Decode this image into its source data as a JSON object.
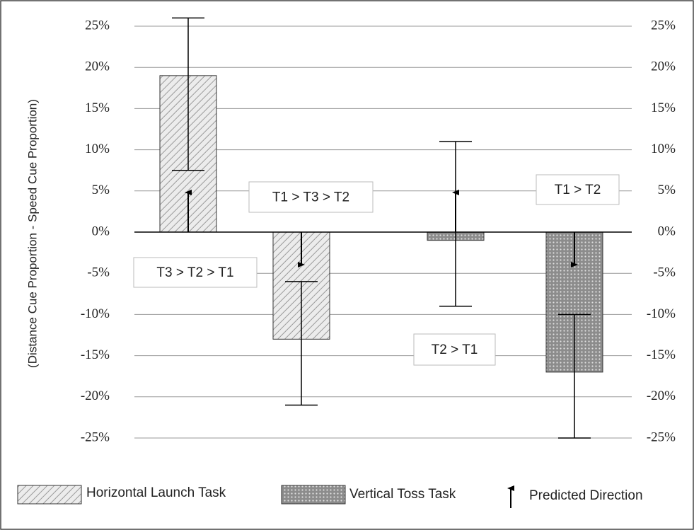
{
  "chart_data": {
    "type": "bar",
    "y_label": "(Distance Cue Proportion - Speed Cue Proportion)",
    "categories": [
      null,
      null,
      null,
      null
    ],
    "series": [
      {
        "name": "Horizontal Launch Task",
        "color": "#e8e8e8",
        "pattern": "hatch",
        "values": [
          19,
          -13,
          null,
          null
        ],
        "error_low": [
          7.5,
          -21,
          null,
          null
        ],
        "error_high": [
          26,
          -6,
          null,
          null
        ]
      },
      {
        "name": "Vertical Toss Task",
        "color": "#8c8c8c",
        "pattern": "dots",
        "values": [
          null,
          null,
          -1,
          -17
        ],
        "error_low": [
          null,
          null,
          -9,
          -25
        ],
        "error_high": [
          null,
          null,
          11,
          -10
        ]
      }
    ],
    "predicted_direction_label": "Predicted Direction",
    "predicted_direction": [
      "up",
      "down",
      "up",
      "down"
    ],
    "annotations": [
      "T1 > T3 > T2",
      "T3 > T2 > T1",
      "T2 > T1",
      "T1 > T2"
    ],
    "ylim": [
      -25,
      25
    ],
    "yticks": [
      {
        "value": 25,
        "label": "25%"
      },
      {
        "value": 20,
        "label": "20%"
      },
      {
        "value": 15,
        "label": "15%"
      },
      {
        "value": 10,
        "label": "10%"
      },
      {
        "value": 5,
        "label": "5%"
      },
      {
        "value": 0,
        "label": "0%"
      },
      {
        "value": -5,
        "label": "-5%"
      },
      {
        "value": -10,
        "label": "-10%"
      },
      {
        "value": -15,
        "label": "-15%"
      },
      {
        "value": -20,
        "label": "-20%"
      },
      {
        "value": -25,
        "label": "-25%"
      }
    ],
    "y2lim": [
      -25,
      25
    ],
    "y2ticks": [
      {
        "value": 25,
        "label": "25%"
      },
      {
        "value": 20,
        "label": "20%"
      },
      {
        "value": 15,
        "label": "15%"
      },
      {
        "value": 10,
        "label": "10%"
      },
      {
        "value": 5,
        "label": "5%"
      },
      {
        "value": 0,
        "label": "0%"
      },
      {
        "value": -5,
        "label": "-5%"
      },
      {
        "value": -10,
        "label": "-10%"
      },
      {
        "value": -15,
        "label": "-15%"
      },
      {
        "value": -20,
        "label": "-20%"
      },
      {
        "value": -25,
        "label": "-25%"
      }
    ],
    "grid": true
  }
}
